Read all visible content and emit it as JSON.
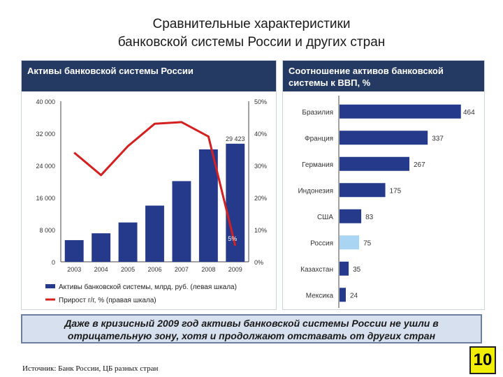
{
  "title_line1": "Сравнительные характеристики",
  "title_line2": "банковской системы России и других стран",
  "left_panel_title": "Активы банковской системы России",
  "right_panel_title": "Соотношение активов банковской системы к ВВП, %",
  "callout_text": "Даже в кризисный 2009 год активы банковской системы России не ушли в отрицательную зону, хотя и продолжают отставать от других стран",
  "source_text": "Источник: Банк России, ЦБ разных стран",
  "page_number": "10",
  "colors": {
    "header": "#253a63",
    "bar": "#253a8a",
    "line": "#d42020",
    "highlight_bar": "#a9d4f2"
  },
  "chart_data": [
    {
      "type": "bar",
      "categories": [
        "2003",
        "2004",
        "2005",
        "2006",
        "2007",
        "2008",
        "2009"
      ],
      "series": [
        {
          "name": "Активы банковской системы, млрд. руб. (левая шкала)",
          "type": "bar",
          "axis": "left",
          "values": [
            5400,
            7100,
            9800,
            14000,
            20100,
            28000,
            29423
          ]
        },
        {
          "name": "Прирост г/г, % (правая шкала)",
          "type": "line",
          "axis": "right",
          "values": [
            34,
            27,
            36,
            43,
            43.5,
            39,
            5
          ]
        }
      ],
      "data_labels": [
        {
          "category": "2009",
          "series": 0,
          "text": "29 423"
        },
        {
          "category": "2009",
          "series": 1,
          "text": "5%"
        }
      ],
      "ylim_left": [
        0,
        40000
      ],
      "ylim_right": [
        0,
        50
      ],
      "left_ticks": [
        "0",
        "8 000",
        "16 000",
        "24 000",
        "32 000",
        "40 000"
      ],
      "right_ticks": [
        "0%",
        "10%",
        "20%",
        "30%",
        "40%",
        "50%"
      ],
      "legend_position": "bottom",
      "grid": false
    },
    {
      "type": "bar",
      "orientation": "horizontal",
      "categories": [
        "Бразилия",
        "Франция",
        "Германия",
        "Индонезия",
        "США",
        "Россия",
        "Казахстан",
        "Мексика"
      ],
      "values": [
        464,
        337,
        267,
        175,
        83,
        75,
        35,
        24
      ],
      "highlight": "Россия",
      "xlim": [
        0,
        470
      ],
      "grid": false
    }
  ]
}
